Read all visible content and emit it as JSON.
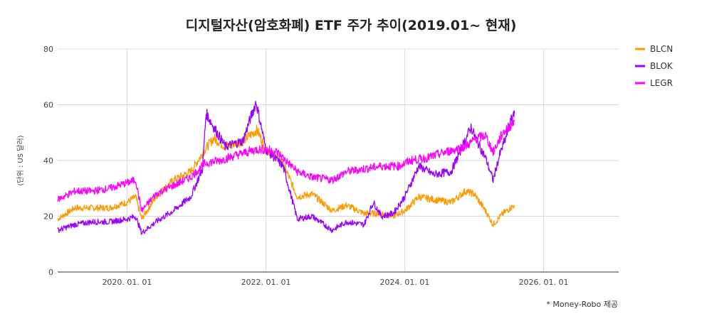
{
  "chart_data": {
    "type": "line",
    "title": "디지털자산(암호화폐) ETF 주가 추이(2019.01~ 현재)",
    "ylabel": "(단위 : US 달러)",
    "xlabel": "",
    "ylim": [
      0,
      80
    ],
    "yticks": [
      "0",
      "20",
      "40",
      "60",
      "80"
    ],
    "xlim": [
      "2019-01-01",
      "2027-01-31"
    ],
    "xticks": [
      {
        "date": "2020-01-01",
        "label": "2020. 01. 01"
      },
      {
        "date": "2022-01-01",
        "label": "2022. 01. 01"
      },
      {
        "date": "2024-01-01",
        "label": "2024. 01. 01"
      },
      {
        "date": "2026-01-01",
        "label": "2026. 01. 01"
      }
    ],
    "grid": true,
    "legend_position": "right",
    "source_note": "* Money-Robo 제공",
    "series": [
      {
        "name": "BLCN",
        "color": "#ff9900",
        "points": [
          [
            "2019-01-01",
            19
          ],
          [
            "2019-04-01",
            23
          ],
          [
            "2019-07-01",
            23
          ],
          [
            "2019-10-01",
            23
          ],
          [
            "2020-01-01",
            25
          ],
          [
            "2020-02-15",
            27
          ],
          [
            "2020-03-18",
            19
          ],
          [
            "2020-06-01",
            27
          ],
          [
            "2020-09-01",
            33
          ],
          [
            "2020-12-01",
            36
          ],
          [
            "2021-02-15",
            44
          ],
          [
            "2021-04-01",
            48
          ],
          [
            "2021-06-01",
            45
          ],
          [
            "2021-09-01",
            47
          ],
          [
            "2021-11-15",
            51
          ],
          [
            "2022-01-01",
            44
          ],
          [
            "2022-04-01",
            39
          ],
          [
            "2022-06-15",
            27
          ],
          [
            "2022-09-01",
            28
          ],
          [
            "2022-12-15",
            22
          ],
          [
            "2023-03-01",
            24
          ],
          [
            "2023-06-01",
            21
          ],
          [
            "2023-09-01",
            21
          ],
          [
            "2023-11-01",
            20
          ],
          [
            "2024-01-01",
            22
          ],
          [
            "2024-03-15",
            27
          ],
          [
            "2024-06-01",
            26
          ],
          [
            "2024-09-01",
            25
          ],
          [
            "2024-11-15",
            29
          ],
          [
            "2025-01-01",
            28
          ],
          [
            "2025-03-01",
            22
          ],
          [
            "2025-04-10",
            17
          ],
          [
            "2025-06-01",
            21
          ],
          [
            "2025-07-31",
            24
          ]
        ]
      },
      {
        "name": "BLOK",
        "color": "#9900ff",
        "points": [
          [
            "2019-01-01",
            15
          ],
          [
            "2019-04-01",
            17
          ],
          [
            "2019-07-01",
            18
          ],
          [
            "2019-10-01",
            18
          ],
          [
            "2020-01-01",
            19
          ],
          [
            "2020-02-15",
            20
          ],
          [
            "2020-03-18",
            14
          ],
          [
            "2020-06-01",
            18
          ],
          [
            "2020-09-01",
            22
          ],
          [
            "2020-12-01",
            27
          ],
          [
            "2021-02-01",
            37
          ],
          [
            "2021-02-20",
            57
          ],
          [
            "2021-04-01",
            52
          ],
          [
            "2021-06-01",
            45
          ],
          [
            "2021-09-01",
            47
          ],
          [
            "2021-11-10",
            61
          ],
          [
            "2022-01-01",
            44
          ],
          [
            "2022-04-01",
            38
          ],
          [
            "2022-06-15",
            19
          ],
          [
            "2022-09-01",
            20
          ],
          [
            "2022-12-15",
            15
          ],
          [
            "2023-03-01",
            18
          ],
          [
            "2023-06-01",
            17
          ],
          [
            "2023-07-20",
            25
          ],
          [
            "2023-09-01",
            20
          ],
          [
            "2023-11-01",
            21
          ],
          [
            "2024-01-01",
            27
          ],
          [
            "2024-03-15",
            38
          ],
          [
            "2024-06-01",
            35
          ],
          [
            "2024-09-01",
            36
          ],
          [
            "2024-12-15",
            52
          ],
          [
            "2025-01-15",
            47
          ],
          [
            "2025-03-01",
            41
          ],
          [
            "2025-04-10",
            33
          ],
          [
            "2025-05-15",
            42
          ],
          [
            "2025-06-15",
            48
          ],
          [
            "2025-07-31",
            58
          ]
        ]
      },
      {
        "name": "LEGR",
        "color": "#ff00ff",
        "points": [
          [
            "2019-01-01",
            26
          ],
          [
            "2019-04-01",
            29
          ],
          [
            "2019-07-01",
            29
          ],
          [
            "2019-10-01",
            30
          ],
          [
            "2020-01-01",
            32
          ],
          [
            "2020-02-15",
            33
          ],
          [
            "2020-03-18",
            22
          ],
          [
            "2020-06-01",
            28
          ],
          [
            "2020-09-01",
            31
          ],
          [
            "2020-12-01",
            34
          ],
          [
            "2021-02-15",
            39
          ],
          [
            "2021-05-01",
            40
          ],
          [
            "2021-08-01",
            42
          ],
          [
            "2021-11-15",
            44
          ],
          [
            "2022-01-01",
            44
          ],
          [
            "2022-03-01",
            43
          ],
          [
            "2022-06-15",
            36
          ],
          [
            "2022-09-01",
            34
          ],
          [
            "2022-12-15",
            33
          ],
          [
            "2023-03-01",
            36
          ],
          [
            "2023-06-01",
            37
          ],
          [
            "2023-09-01",
            38
          ],
          [
            "2023-12-01",
            38
          ],
          [
            "2024-02-01",
            40
          ],
          [
            "2024-05-01",
            41
          ],
          [
            "2024-08-01",
            43
          ],
          [
            "2024-11-15",
            45
          ],
          [
            "2025-01-15",
            48
          ],
          [
            "2025-03-01",
            49
          ],
          [
            "2025-04-10",
            43
          ],
          [
            "2025-06-01",
            50
          ],
          [
            "2025-07-31",
            54
          ]
        ]
      }
    ]
  }
}
